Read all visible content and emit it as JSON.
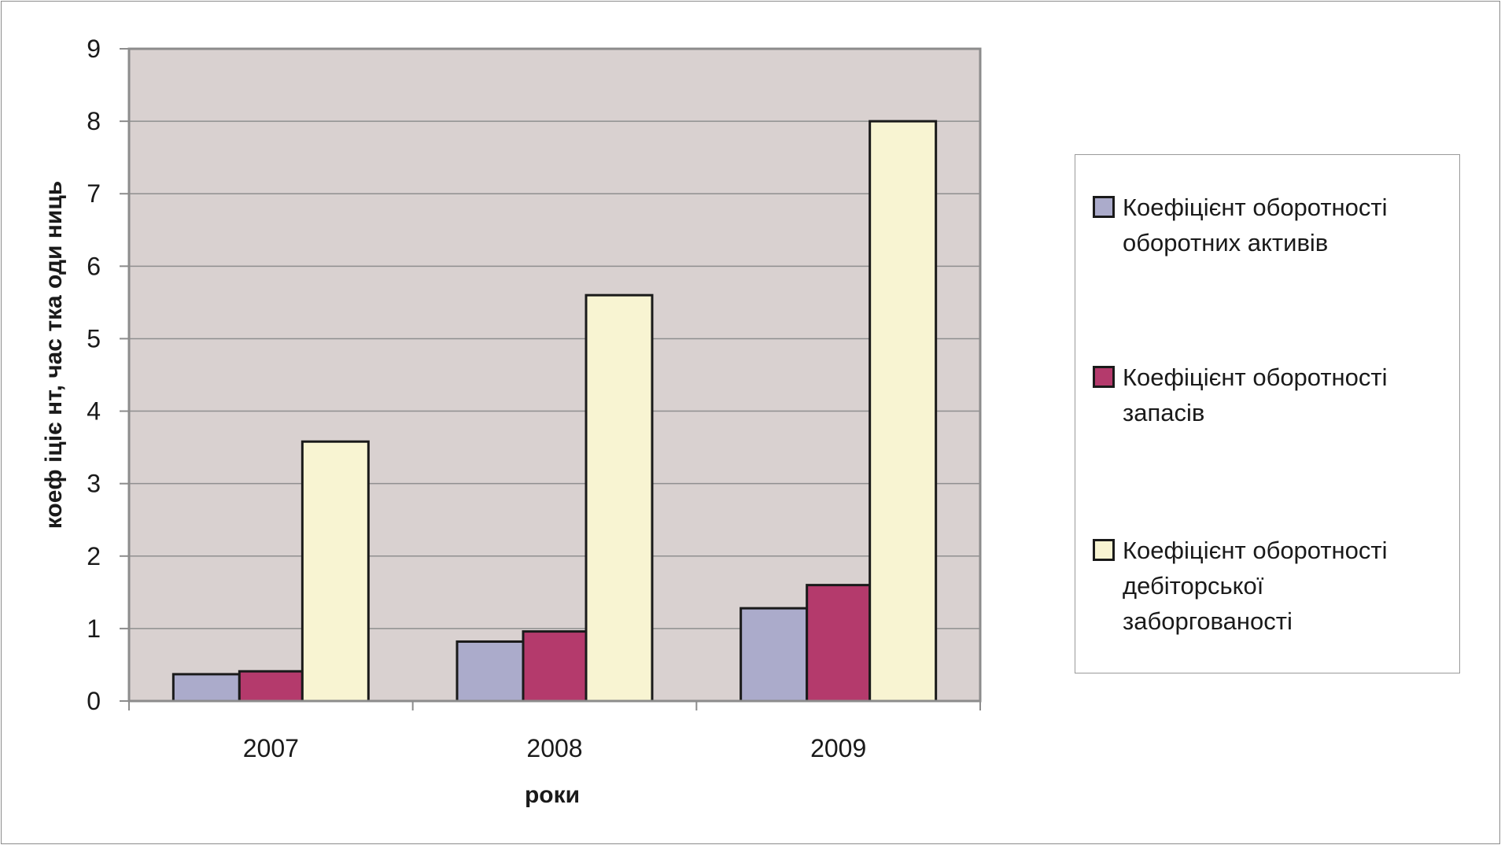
{
  "chart_data": {
    "type": "bar",
    "categories": [
      "2007",
      "2008",
      "2009"
    ],
    "series": [
      {
        "name": "Коефіцієнт оборотності оборотних активів",
        "values": [
          0.37,
          0.82,
          1.28
        ],
        "color": "#ababcb"
      },
      {
        "name": "Коефіцієнт оборотності запасів",
        "values": [
          0.41,
          0.96,
          1.6
        ],
        "color": "#b43a6c"
      },
      {
        "name": "Коефіцієнт оборотності дебіторської заборгованості",
        "values": [
          3.58,
          5.6,
          8.0
        ],
        "color": "#f8f4d2"
      }
    ],
    "xlabel": "роки",
    "ylabel": "коеф іціє нт, час тка оди ниць",
    "ylim": [
      0,
      9
    ],
    "yticks": [
      "0",
      "1",
      "2",
      "3",
      "4",
      "5",
      "6",
      "7",
      "8",
      "9"
    ],
    "grid": true,
    "plot_background": "#d9d1d0",
    "legend_position": "right"
  }
}
